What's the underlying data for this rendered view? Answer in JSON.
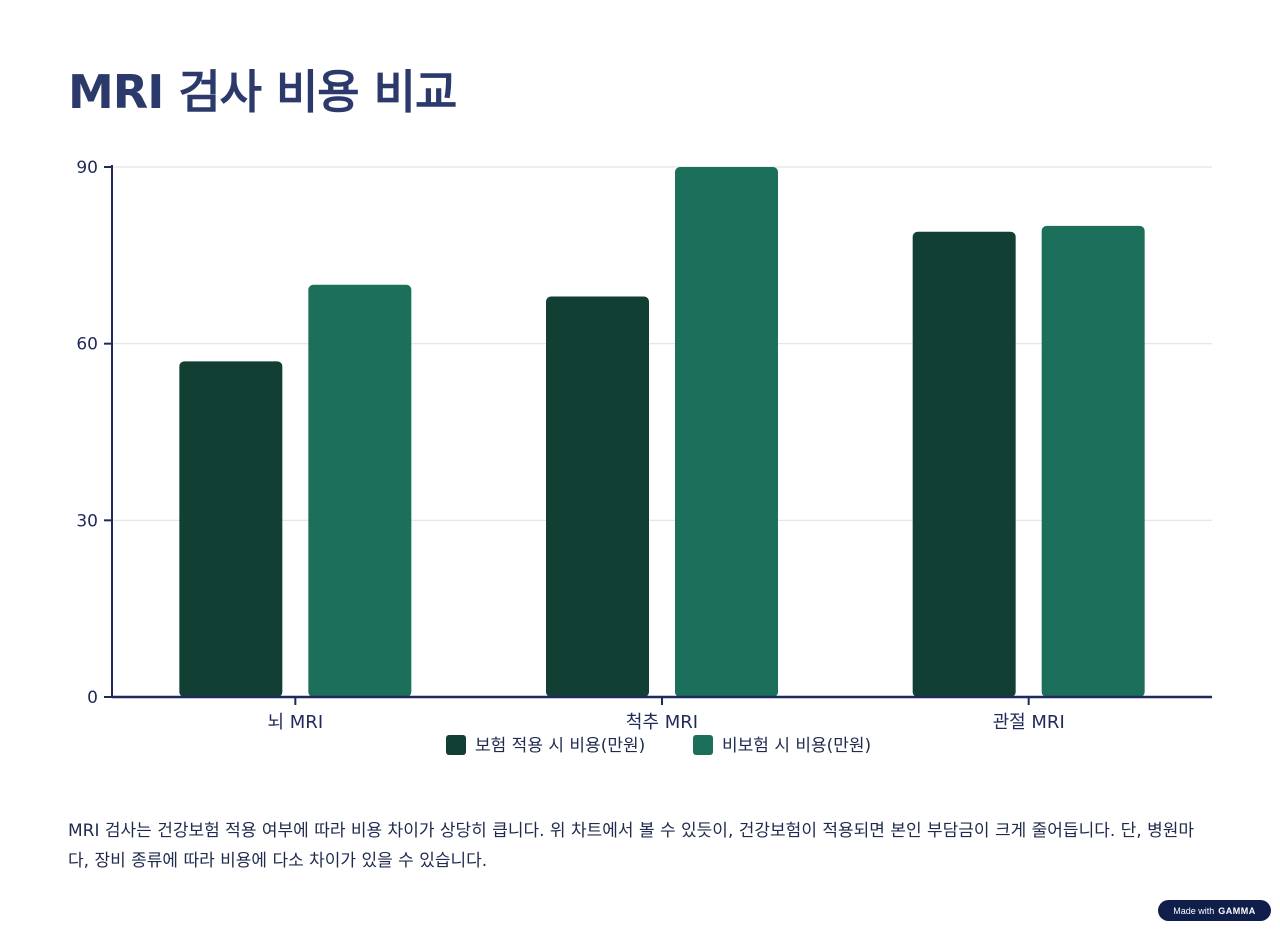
{
  "page": {
    "title": "MRI 검사 비용 비교",
    "description": "MRI 검사는 건강보험 적용 여부에 따라 비용 차이가 상당히 큽니다. 위 차트에서 볼 수 있듯이, 건강보험이 적용되면 본인 부담금이 크게 줄어듭니다. 단, 병원마다, 장비 종류에 따라 비용에 다소 차이가 있을 수 있습니다.",
    "badge": {
      "prefix": "Made with",
      "brand": "GAMMA"
    }
  },
  "chart_data": {
    "type": "bar",
    "title": "MRI 검사 비용 비교",
    "xlabel": "",
    "ylabel": "",
    "categories": [
      "뇌 MRI",
      "척추 MRI",
      "관절 MRI"
    ],
    "series": [
      {
        "name": "보험 적용 시 비용(만원)",
        "values": [
          57,
          68,
          79
        ],
        "color": "#113f33"
      },
      {
        "name": "비보험 시 비용(만원)",
        "values": [
          70,
          90,
          80
        ],
        "color": "#1b6f5b"
      }
    ],
    "ylim": [
      0,
      90
    ],
    "yticks": [
      0,
      30,
      60,
      90
    ],
    "grid": true,
    "legend": "bottom-center",
    "axis_color": "#1f2a5a",
    "grid_color": "#e3e3e3"
  }
}
